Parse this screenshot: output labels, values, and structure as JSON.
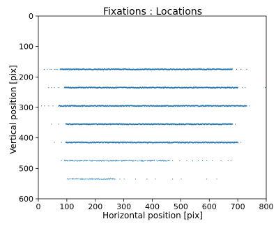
{
  "chart_data": {
    "type": "scatter",
    "title": "Fixations : Locations",
    "xlabel": "Horizontal position [pix]",
    "ylabel": "Vertical position [pix]",
    "xlim": [
      0,
      800
    ],
    "ylim": [
      600,
      0
    ],
    "y_inverted": true,
    "grid": false,
    "legend": "none",
    "marker_color": "#1f77b4",
    "xticks": [
      0,
      100,
      200,
      300,
      400,
      500,
      600,
      700,
      800
    ],
    "yticks": [
      0,
      100,
      200,
      300,
      400,
      500,
      600
    ],
    "rows": [
      {
        "y": 175,
        "x_start": 75,
        "x_end": 680,
        "outliers": [
          20,
          30,
          40,
          45,
          55,
          60,
          65,
          695,
          710,
          730
        ]
      },
      {
        "y": 235,
        "x_start": 90,
        "x_end": 700,
        "outliers": [
          35,
          45,
          55,
          70,
          715,
          725,
          795
        ]
      },
      {
        "y": 295,
        "x_start": 70,
        "x_end": 730,
        "outliers": [
          10,
          20,
          35,
          50,
          740
        ]
      },
      {
        "y": 355,
        "x_start": 95,
        "x_end": 680,
        "outliers": [
          45,
          70,
          690
        ]
      },
      {
        "y": 415,
        "x_start": 95,
        "x_end": 700,
        "outliers": [
          55,
          80,
          710
        ]
      },
      {
        "y": 475,
        "x_start": 90,
        "x_end": 460,
        "outliers": [
          80,
          470,
          495,
          520,
          540,
          560,
          575,
          590,
          610,
          640,
          665,
          675
        ]
      },
      {
        "y": 535,
        "x_start": 100,
        "x_end": 270,
        "outliers": [
          285,
          300,
          340,
          380,
          410,
          470,
          500,
          590,
          625
        ]
      }
    ]
  }
}
